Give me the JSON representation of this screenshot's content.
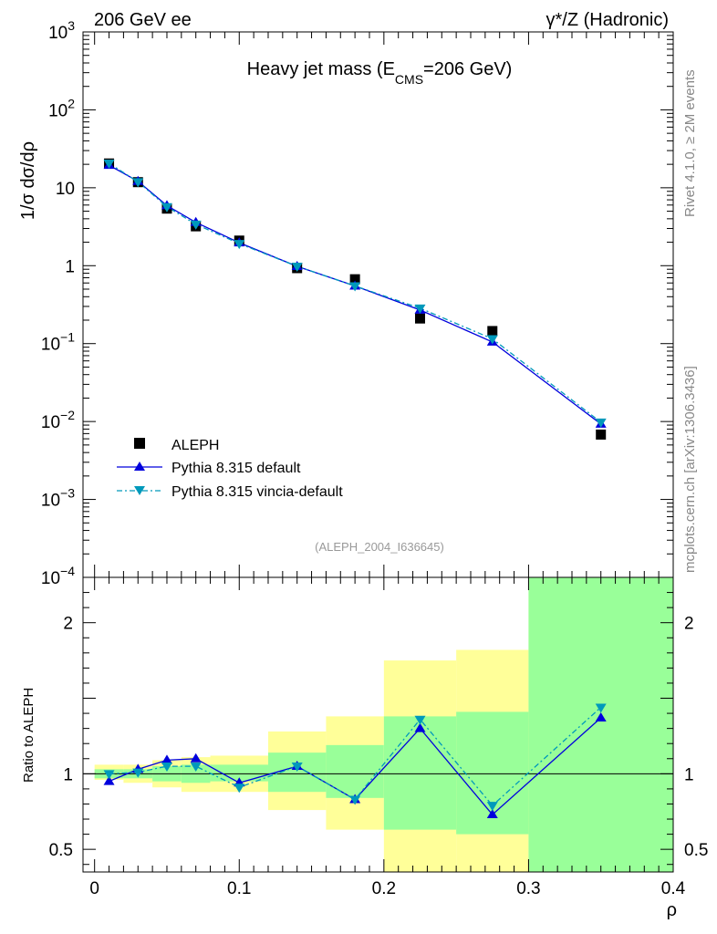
{
  "header": {
    "left": "206 GeV ee",
    "right": "γ*/Z (Hadronic)"
  },
  "colors": {
    "aleph": "#000000",
    "pythia": "#0000dd",
    "vincia": "#0099bb",
    "band_yellow": "#ffff99",
    "band_green": "#99ff99"
  },
  "chart_data": [
    {
      "type": "scatter",
      "title_main": "Heavy jet mass (E",
      "title_sub": "CMS",
      "title_tail": "=206 GeV)",
      "ylabel": "1/σ dσ/dρ",
      "yscale": "log",
      "ylim": [
        0.0001,
        1000
      ],
      "xlim": [
        -0.008,
        0.4
      ],
      "ytick_labels": [
        {
          "v": 1000,
          "base": "10",
          "exp": "3"
        },
        {
          "v": 100,
          "base": "10",
          "exp": "2"
        },
        {
          "v": 10,
          "base": "10",
          "exp": ""
        },
        {
          "v": 1,
          "base": "1",
          "exp": ""
        },
        {
          "v": 0.1,
          "base": "10",
          "exp": "−1"
        },
        {
          "v": 0.01,
          "base": "10",
          "exp": "−2"
        },
        {
          "v": 0.001,
          "base": "10",
          "exp": "−3"
        },
        {
          "v": 0.0001,
          "base": "10",
          "exp": "−4"
        }
      ],
      "x": [
        0.01,
        0.03,
        0.05,
        0.07,
        0.1,
        0.14,
        0.18,
        0.225,
        0.275,
        0.35
      ],
      "series": [
        {
          "name": "ALEPH",
          "values": [
            20.5,
            11.8,
            5.4,
            3.2,
            2.1,
            0.93,
            0.67,
            0.21,
            0.145,
            0.0068
          ]
        },
        {
          "name": "Pythia 8.315 default",
          "values": [
            19.5,
            12.1,
            5.9,
            3.6,
            1.97,
            0.98,
            0.55,
            0.27,
            0.105,
            0.0093
          ]
        },
        {
          "name": "Pythia 8.315 vincia-default",
          "values": [
            20.6,
            11.9,
            5.7,
            3.4,
            1.92,
            0.98,
            0.55,
            0.285,
            0.115,
            0.0098
          ]
        }
      ],
      "legend": [
        "ALEPH",
        "Pythia 8.315 default",
        "Pythia 8.315 vincia-default"
      ],
      "annotation": "(ALEPH_2004_I636645)"
    },
    {
      "type": "line",
      "ylabel": "Ratio to ALEPH",
      "xlabel": "ρ",
      "ylim": [
        0.35,
        2.3
      ],
      "xlim": [
        -0.008,
        0.4
      ],
      "ytick_labels": [
        "0.5",
        "1",
        "2"
      ],
      "ytick_values": [
        0.5,
        1,
        2
      ],
      "xtick_labels": [
        "0",
        "0.1",
        "0.2",
        "0.3",
        "0.4"
      ],
      "xtick_values": [
        0,
        0.1,
        0.2,
        0.3,
        0.4
      ],
      "bins": [
        {
          "lo": 0.0,
          "hi": 0.02,
          "y_lo": 0.96,
          "y_hi": 1.06,
          "g_lo": 0.97,
          "g_hi": 1.03
        },
        {
          "lo": 0.02,
          "hi": 0.04,
          "y_lo": 0.94,
          "y_hi": 1.06,
          "g_lo": 0.97,
          "g_hi": 1.03
        },
        {
          "lo": 0.04,
          "hi": 0.06,
          "y_lo": 0.91,
          "y_hi": 1.09,
          "g_lo": 0.95,
          "g_hi": 1.05
        },
        {
          "lo": 0.06,
          "hi": 0.08,
          "y_lo": 0.88,
          "y_hi": 1.11,
          "g_lo": 0.94,
          "g_hi": 1.06
        },
        {
          "lo": 0.08,
          "hi": 0.12,
          "y_lo": 0.88,
          "y_hi": 1.12,
          "g_lo": 0.95,
          "g_hi": 1.06
        },
        {
          "lo": 0.12,
          "hi": 0.16,
          "y_lo": 0.76,
          "y_hi": 1.28,
          "g_lo": 0.88,
          "g_hi": 1.14
        },
        {
          "lo": 0.16,
          "hi": 0.2,
          "y_lo": 0.63,
          "y_hi": 1.38,
          "g_lo": 0.84,
          "g_hi": 1.19
        },
        {
          "lo": 0.2,
          "hi": 0.25,
          "y_lo": 0.3,
          "y_hi": 1.75,
          "g_lo": 0.63,
          "g_hi": 1.38
        },
        {
          "lo": 0.25,
          "hi": 0.3,
          "y_lo": 0.3,
          "y_hi": 1.82,
          "g_lo": 0.6,
          "g_hi": 1.41
        },
        {
          "lo": 0.3,
          "hi": 0.4,
          "y_lo": 0.3,
          "y_hi": 2.3,
          "g_lo": 0.3,
          "g_hi": 2.3
        }
      ],
      "series": [
        {
          "name": "Pythia 8.315 default",
          "values": [
            0.95,
            1.03,
            1.09,
            1.1,
            0.94,
            1.05,
            0.83,
            1.3,
            0.73,
            1.37
          ]
        },
        {
          "name": "Pythia 8.315 vincia-default",
          "values": [
            1.0,
            1.01,
            1.05,
            1.05,
            0.91,
            1.05,
            0.83,
            1.36,
            0.79,
            1.44
          ]
        }
      ]
    }
  ],
  "side_labels": {
    "rivet": "Rivet 4.1.0, ≥ 2M events",
    "mcplots": "mcplots.cern.ch [arXiv:1306.3436]"
  }
}
